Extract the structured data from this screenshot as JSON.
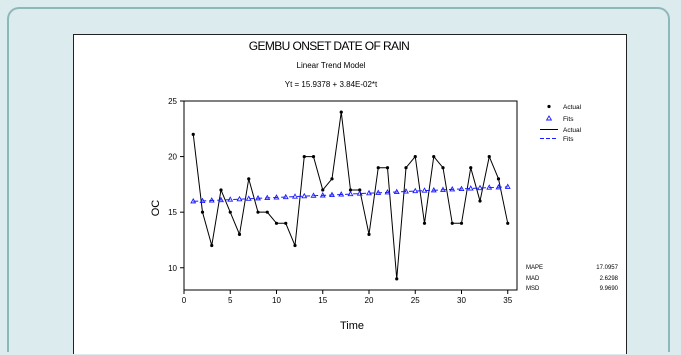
{
  "chart_data": {
    "type": "line",
    "title": "GEMBU ONSET DATE OF RAIN",
    "subtitle": "Linear Trend Model",
    "equation": "Yt = 15.9378 + 3.84E-02*t",
    "xlabel": "Time",
    "ylabel": "OC",
    "xlim": [
      0,
      36
    ],
    "ylim": [
      8,
      25
    ],
    "xticks": [
      0,
      5,
      10,
      15,
      20,
      25,
      30,
      35
    ],
    "yticks": [
      10,
      15,
      20,
      25
    ],
    "grid": false,
    "legend_position": "right",
    "legend": [
      "Actual",
      "Fits",
      "Actual",
      "Fits"
    ],
    "series": [
      {
        "name": "Actual",
        "color": "#000000",
        "x": [
          1,
          2,
          3,
          4,
          5,
          6,
          7,
          8,
          9,
          10,
          11,
          12,
          13,
          14,
          15,
          16,
          17,
          18,
          19,
          20,
          21,
          22,
          23,
          24,
          25,
          26,
          27,
          28,
          29,
          30,
          31,
          32,
          33,
          34,
          35
        ],
        "values": [
          22,
          15,
          12,
          17,
          15,
          13,
          18,
          15,
          15,
          14,
          14,
          12,
          20,
          20,
          17,
          18,
          24,
          17,
          17,
          13,
          19,
          19,
          9,
          19,
          20,
          14,
          20,
          19,
          14,
          14,
          19,
          16,
          20,
          18,
          14
        ]
      },
      {
        "name": "Fits",
        "color": "#1a1aff",
        "x": [
          1,
          2,
          3,
          4,
          5,
          6,
          7,
          8,
          9,
          10,
          11,
          12,
          13,
          14,
          15,
          16,
          17,
          18,
          19,
          20,
          21,
          22,
          23,
          24,
          25,
          26,
          27,
          28,
          29,
          30,
          31,
          32,
          33,
          34,
          35
        ],
        "values": [
          15.98,
          16.01,
          16.05,
          16.09,
          16.13,
          16.17,
          16.21,
          16.25,
          16.28,
          16.32,
          16.36,
          16.4,
          16.44,
          16.48,
          16.51,
          16.55,
          16.59,
          16.63,
          16.67,
          16.71,
          16.74,
          16.78,
          16.82,
          16.86,
          16.9,
          16.94,
          16.97,
          17.01,
          17.05,
          17.09,
          17.13,
          17.17,
          17.21,
          17.24,
          17.28
        ]
      }
    ],
    "accuracy": [
      {
        "label": "MAPE",
        "value": "17.0957"
      },
      {
        "label": "MAD",
        "value": "2.6298"
      },
      {
        "label": "MSD",
        "value": "9.9690"
      }
    ]
  }
}
